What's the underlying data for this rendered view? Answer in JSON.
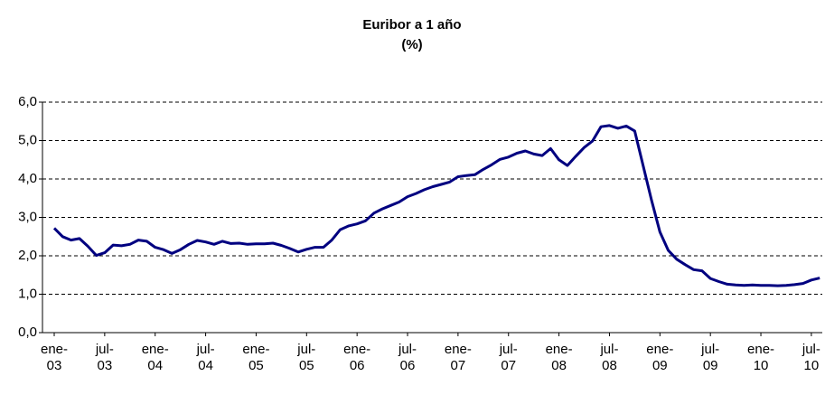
{
  "chart_data": {
    "type": "line",
    "title": "Euribor a 1 año",
    "subtitle": "(%)",
    "categories": [
      "ene-03",
      null,
      null,
      null,
      null,
      null,
      "jul-03",
      null,
      null,
      null,
      null,
      null,
      "ene-04",
      null,
      null,
      null,
      null,
      null,
      "jul-04",
      null,
      null,
      null,
      null,
      null,
      "ene-05",
      null,
      null,
      null,
      null,
      null,
      "jul-05",
      null,
      null,
      null,
      null,
      null,
      "ene-06",
      null,
      null,
      null,
      null,
      null,
      "jul-06",
      null,
      null,
      null,
      null,
      null,
      "ene-07",
      null,
      null,
      null,
      null,
      null,
      "jul-07",
      null,
      null,
      null,
      null,
      null,
      "ene-08",
      null,
      null,
      null,
      null,
      null,
      "jul-08",
      null,
      null,
      null,
      null,
      null,
      "ene-09",
      null,
      null,
      null,
      null,
      null,
      "jul-09",
      null,
      null,
      null,
      null,
      null,
      "ene-10",
      null,
      null,
      null,
      null,
      null,
      "jul-10",
      null
    ],
    "series": [
      {
        "name": "Euribor a 1 año",
        "color": "#000080",
        "values": [
          2.72,
          2.5,
          2.41,
          2.45,
          2.25,
          2.01,
          2.08,
          2.28,
          2.26,
          2.3,
          2.41,
          2.38,
          2.22,
          2.16,
          2.06,
          2.16,
          2.3,
          2.4,
          2.36,
          2.3,
          2.38,
          2.32,
          2.33,
          2.3,
          2.31,
          2.31,
          2.33,
          2.27,
          2.19,
          2.1,
          2.17,
          2.22,
          2.22,
          2.41,
          2.68,
          2.78,
          2.83,
          2.91,
          3.11,
          3.22,
          3.31,
          3.4,
          3.54,
          3.62,
          3.72,
          3.8,
          3.86,
          3.92,
          4.06,
          4.09,
          4.11,
          4.25,
          4.37,
          4.51,
          4.57,
          4.67,
          4.73,
          4.65,
          4.61,
          4.79,
          4.5,
          4.35,
          4.59,
          4.82,
          4.99,
          5.36,
          5.39,
          5.32,
          5.38,
          5.25,
          4.35,
          3.45,
          2.62,
          2.14,
          1.91,
          1.77,
          1.64,
          1.61,
          1.41,
          1.33,
          1.26,
          1.24,
          1.23,
          1.24,
          1.23,
          1.23,
          1.22,
          1.23,
          1.25,
          1.28,
          1.37,
          1.42
        ]
      }
    ],
    "ylim": [
      0,
      6
    ],
    "yticks": [
      {
        "value": 0,
        "label": "0,0"
      },
      {
        "value": 1,
        "label": "1,0"
      },
      {
        "value": 2,
        "label": "2,0"
      },
      {
        "value": 3,
        "label": "3,0"
      },
      {
        "value": 4,
        "label": "4,0"
      },
      {
        "value": 5,
        "label": "5,0"
      },
      {
        "value": 6,
        "label": "6,0"
      }
    ],
    "grid": true
  }
}
